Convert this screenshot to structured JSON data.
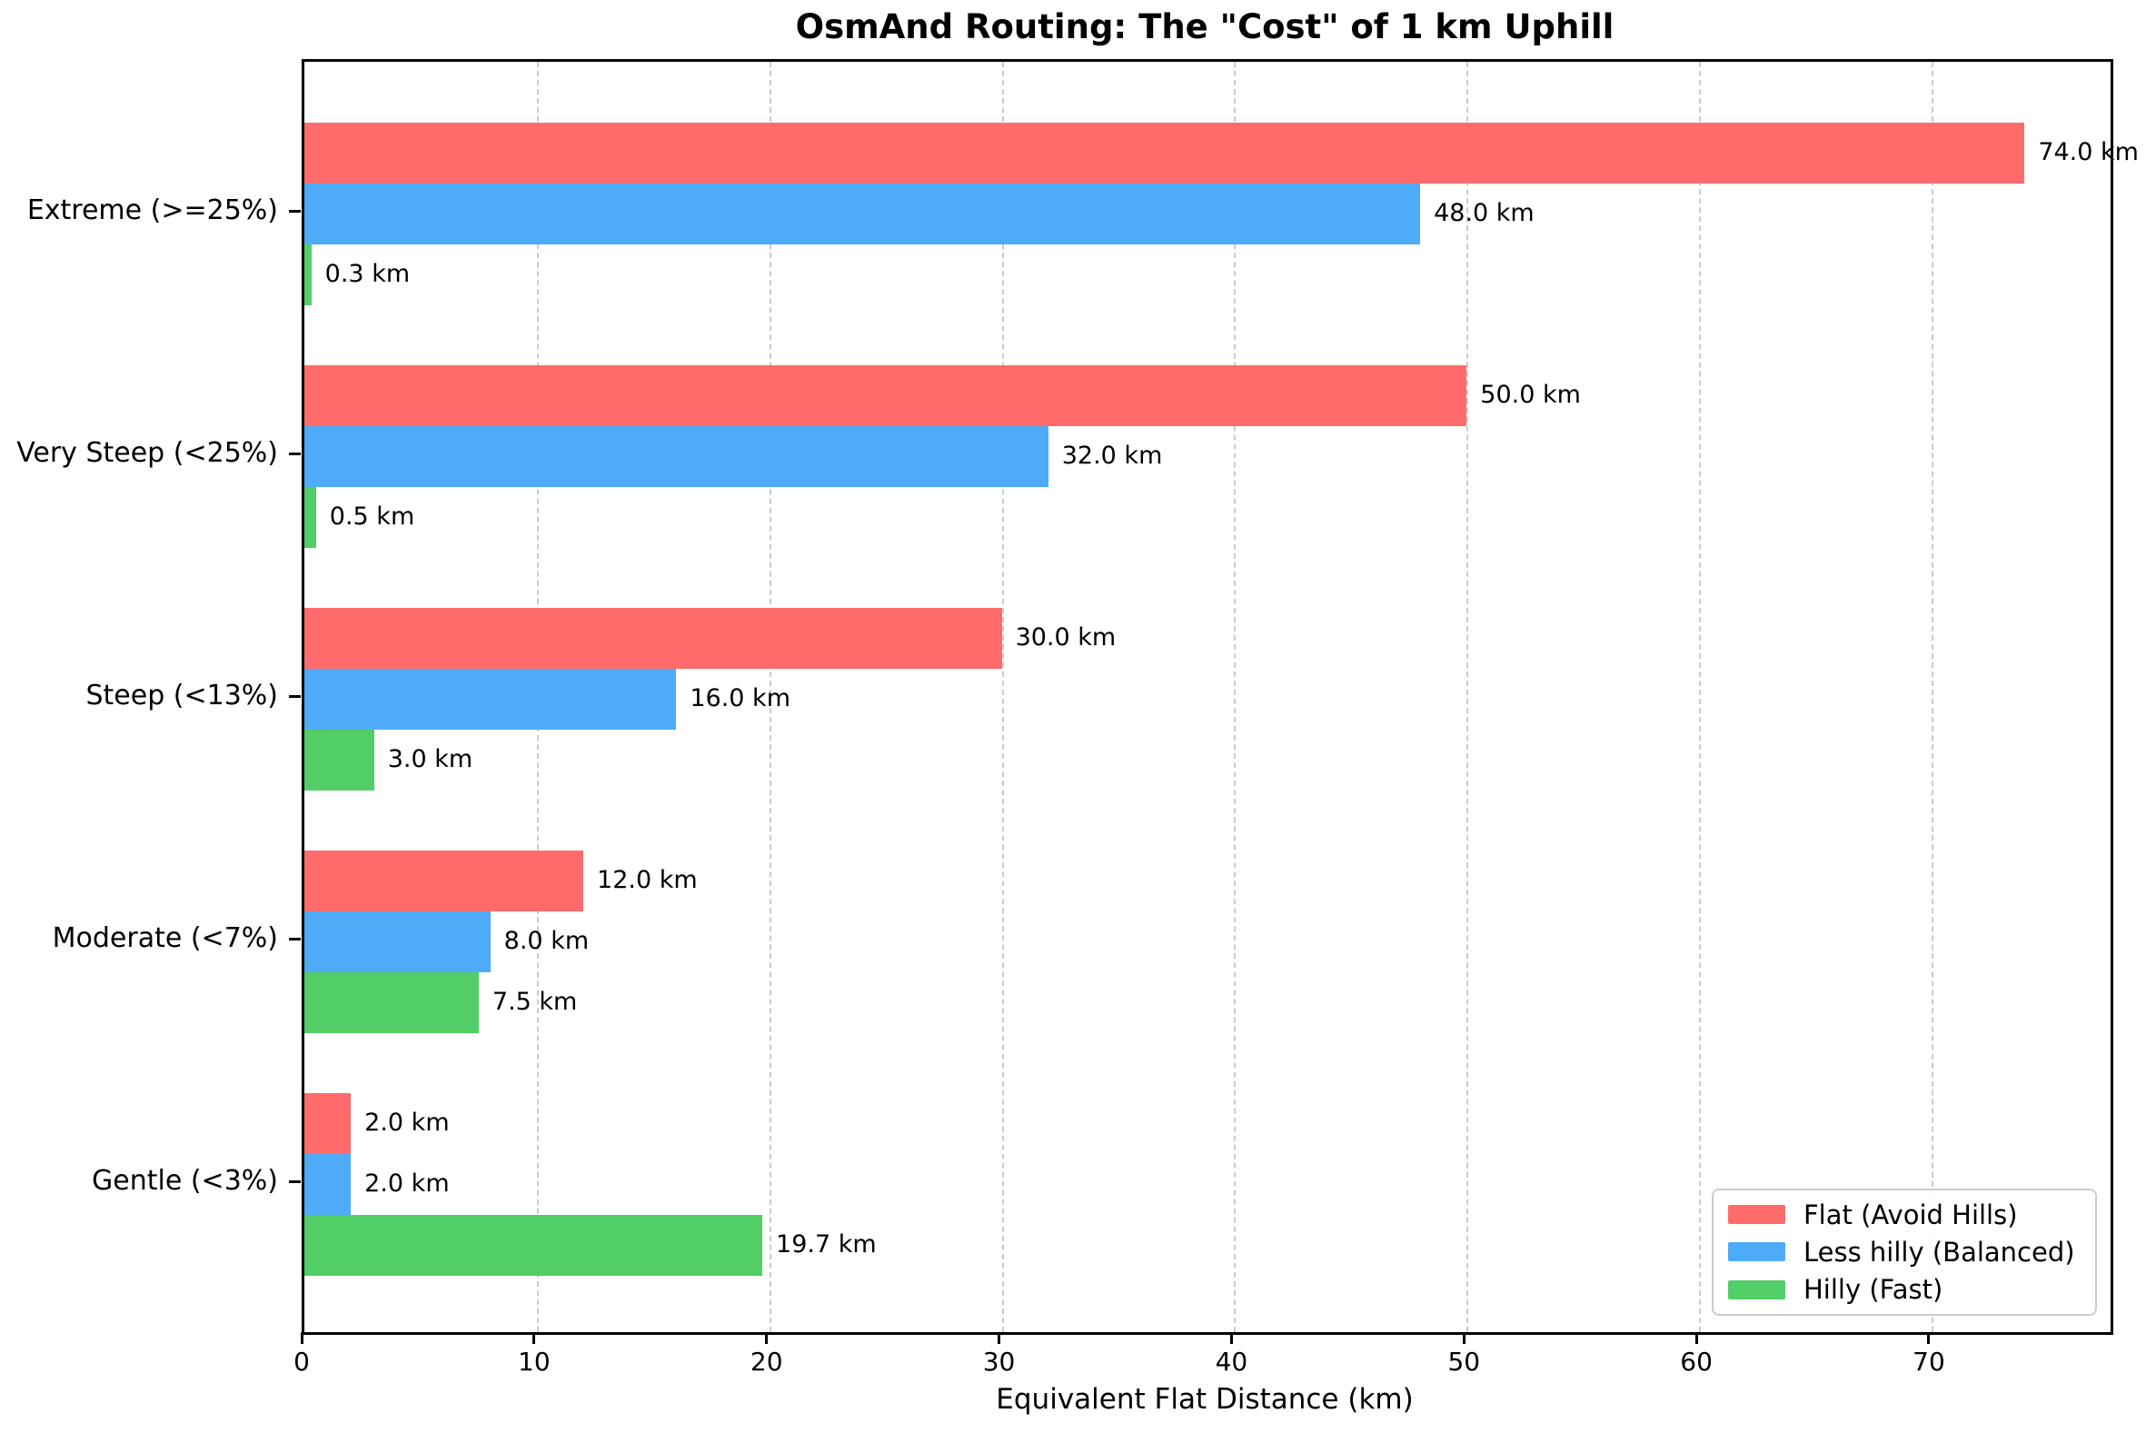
{
  "chart_data": {
    "type": "bar",
    "orientation": "horizontal",
    "title": "OsmAnd Routing: The \"Cost\" of 1 km Uphill",
    "xlabel": "Equivalent Flat Distance (km)",
    "ylabel": "",
    "categories": [
      "Extreme (>=25%)",
      "Very Steep (<25%)",
      "Steep (<13%)",
      "Moderate (<7%)",
      "Gentle (<3%)"
    ],
    "series": [
      {
        "name": "Flat (Avoid Hills)",
        "color": "#ff6b6b",
        "values": [
          74.0,
          50.0,
          30.0,
          12.0,
          2.0
        ],
        "value_labels": [
          "74.0 km",
          "50.0 km",
          "30.0 km",
          "12.0 km",
          "2.0 km"
        ]
      },
      {
        "name": "Less hilly (Balanced)",
        "color": "#4dabf7",
        "values": [
          48.0,
          32.0,
          16.0,
          8.0,
          2.0
        ],
        "value_labels": [
          "48.0 km",
          "32.0 km",
          "16.0 km",
          "8.0 km",
          "2.0 km"
        ]
      },
      {
        "name": "Hilly (Fast)",
        "color": "#51cf66",
        "values": [
          0.3,
          0.5,
          3.0,
          7.5,
          19.7
        ],
        "value_labels": [
          "0.3 km",
          "0.5 km",
          "3.0 km",
          "7.5 km",
          "19.7 km"
        ]
      }
    ],
    "x_ticks": [
      0,
      10,
      20,
      30,
      40,
      50,
      60,
      70
    ],
    "xlim": [
      0,
      77.7
    ],
    "grid": {
      "axis": "x",
      "style": "dashed",
      "color": "#cbcbcb"
    },
    "legend": {
      "position": "lower right"
    },
    "axis_color": "#000000",
    "background_color": "#ffffff"
  }
}
